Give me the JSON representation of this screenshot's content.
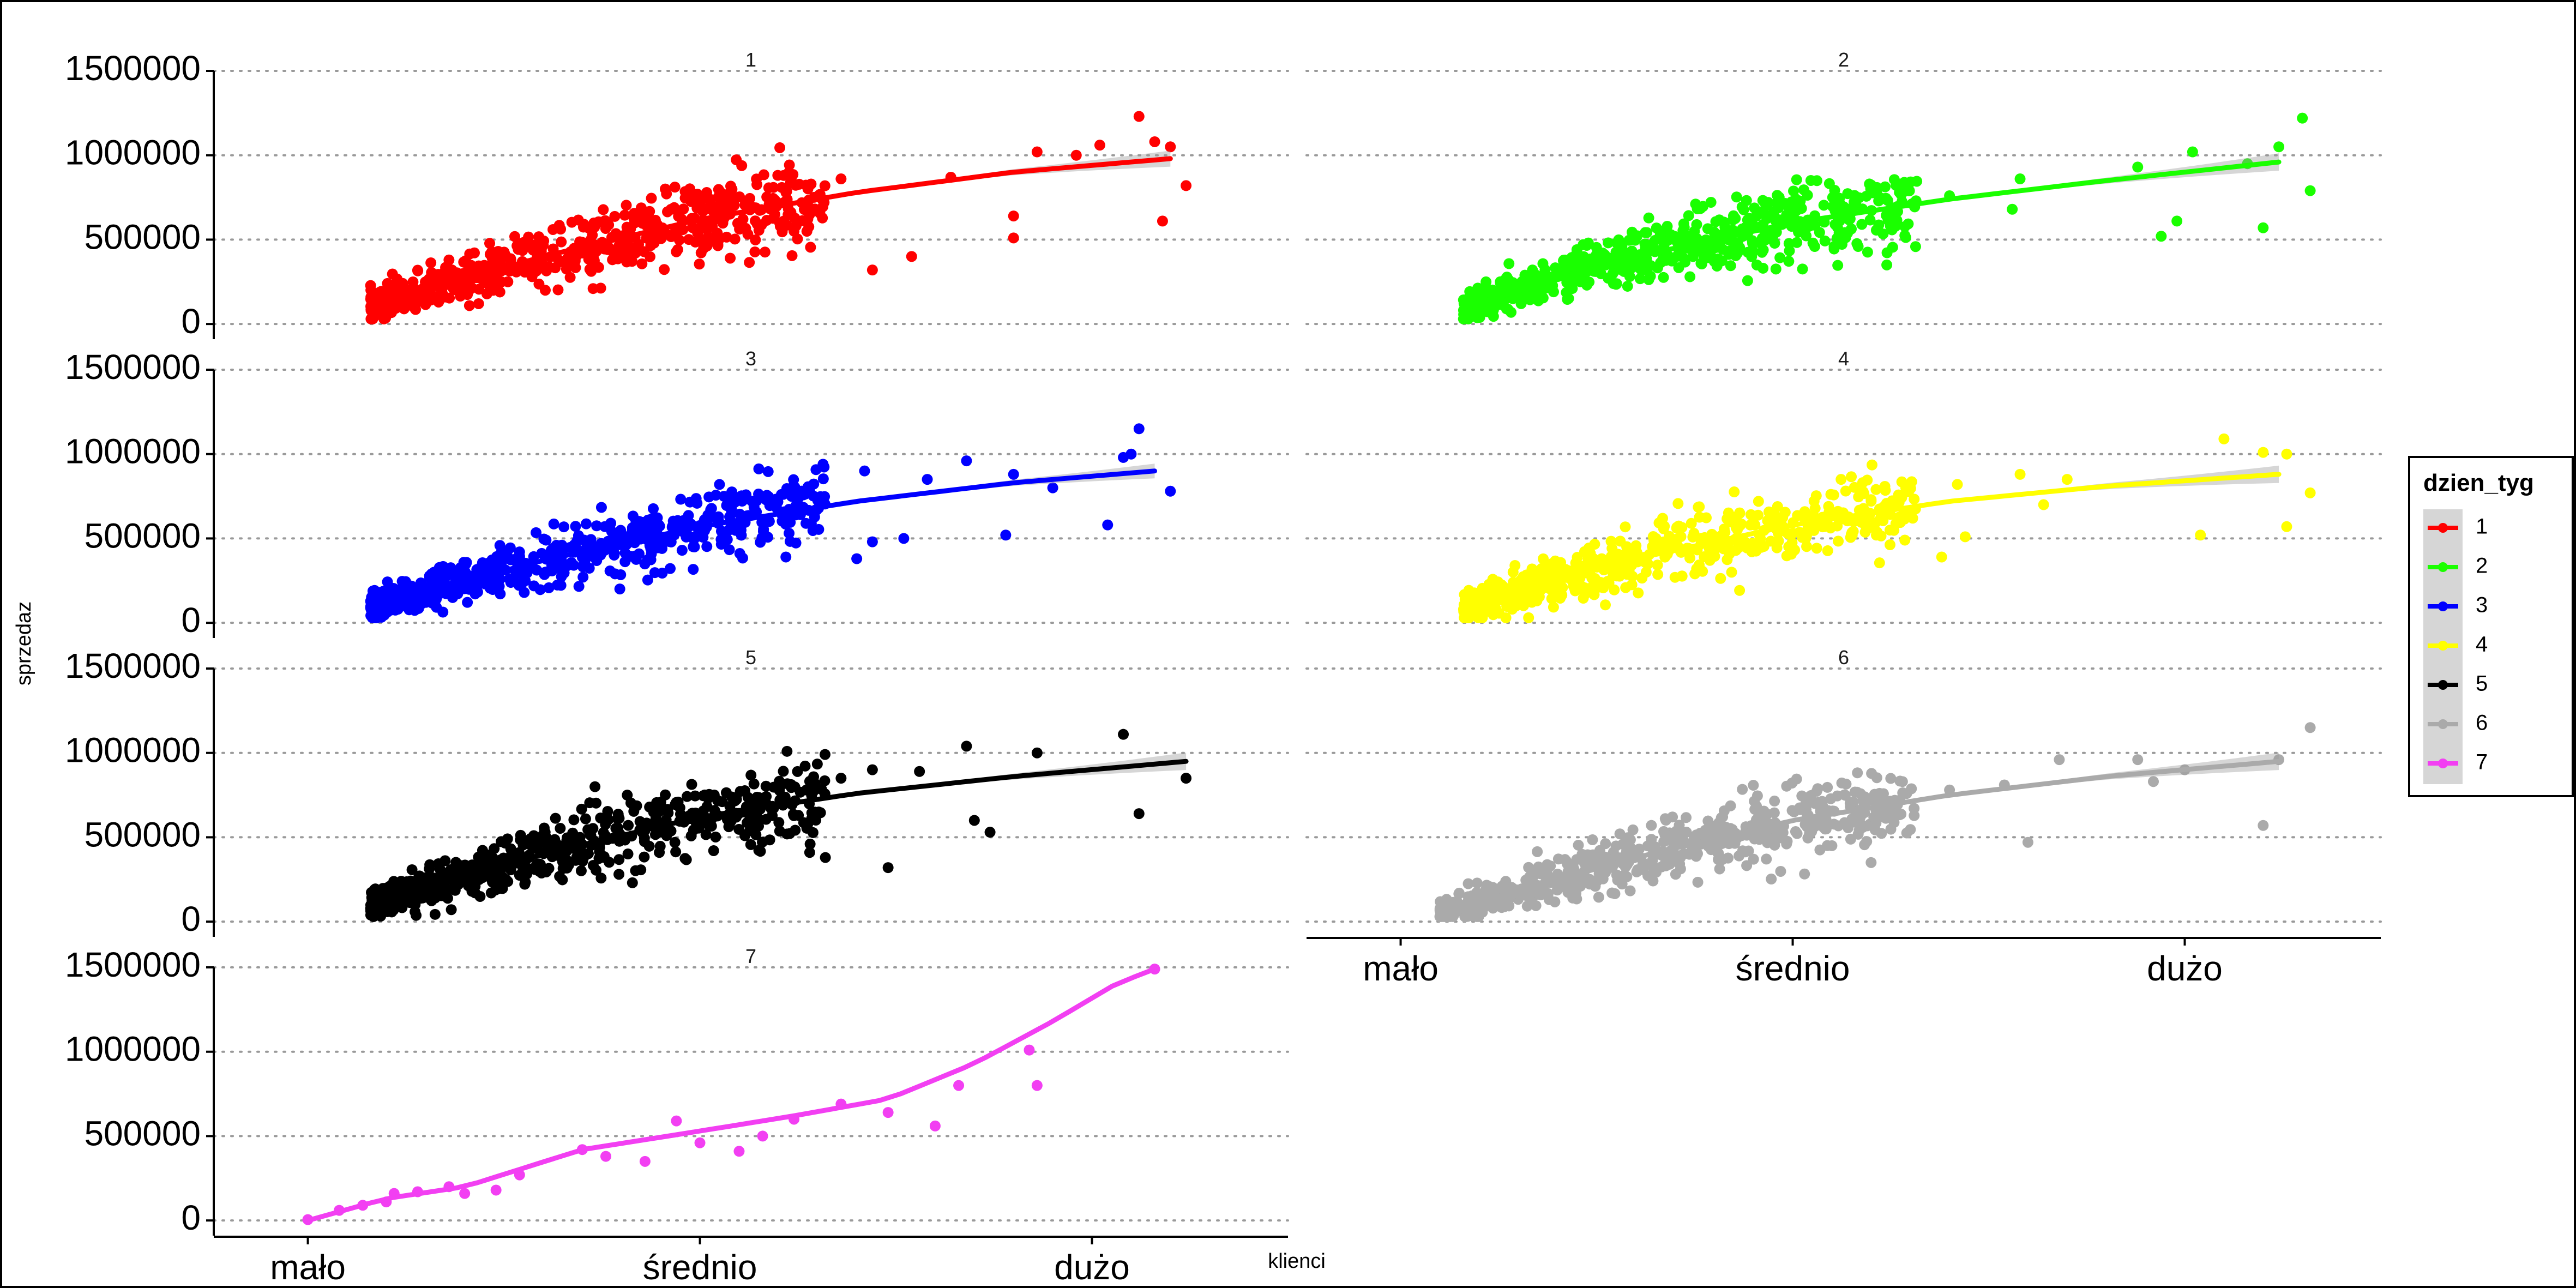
{
  "chart_data": {
    "type": "scatter",
    "layout": "facet_wrap",
    "xlabel": "klienci",
    "ylabel": "sprzedaz",
    "x_ticks": [
      "mało",
      "średnio",
      "dużo"
    ],
    "y_ticks": [
      "0",
      "500000",
      "1000000",
      "1500000"
    ],
    "ylim": [
      0,
      1500000
    ],
    "grid": "dotted horizontal",
    "legend": {
      "title": "dzien_tyg",
      "placement": "right"
    },
    "colors": {
      "1": "#ff0000",
      "2": "#1aff00",
      "3": "#0000ff",
      "4": "#ffff00",
      "5": "#000000",
      "6": "#aaaaaa",
      "7": "#f23ff2"
    },
    "series": [
      {
        "name": "1",
        "trend": [
          [
            0.08,
            100000
          ],
          [
            0.3,
            400000
          ],
          [
            0.5,
            620000
          ],
          [
            0.7,
            780000
          ],
          [
            0.9,
            900000
          ],
          [
            1.1,
            980000
          ]
        ],
        "sparse_points": [
          [
            0.68,
            860000
          ],
          [
            0.82,
            870000
          ],
          [
            0.93,
            1020000
          ],
          [
            1.01,
            1060000
          ],
          [
            1.08,
            1080000
          ],
          [
            0.98,
            1000000
          ],
          [
            1.06,
            1230000
          ],
          [
            1.1,
            1050000
          ],
          [
            1.12,
            820000
          ],
          [
            1.09,
            610000
          ],
          [
            0.72,
            320000
          ],
          [
            0.62,
            550000
          ],
          [
            0.64,
            650000
          ],
          [
            0.77,
            400000
          ],
          [
            0.9,
            510000
          ],
          [
            0.9,
            640000
          ]
        ]
      },
      {
        "name": "2",
        "trend": [
          [
            0.08,
            100000
          ],
          [
            0.3,
            400000
          ],
          [
            0.5,
            600000
          ],
          [
            0.7,
            740000
          ],
          [
            0.9,
            850000
          ],
          [
            1.12,
            960000
          ]
        ],
        "sparse_points": [
          [
            0.7,
            760000
          ],
          [
            0.79,
            860000
          ],
          [
            0.94,
            930000
          ],
          [
            1.01,
            1020000
          ],
          [
            1.08,
            950000
          ],
          [
            1.12,
            1050000
          ],
          [
            1.15,
            1220000
          ],
          [
            1.16,
            790000
          ],
          [
            1.1,
            570000
          ],
          [
            0.99,
            610000
          ],
          [
            0.97,
            520000
          ],
          [
            0.62,
            350000
          ],
          [
            0.78,
            680000
          ]
        ]
      },
      {
        "name": "3",
        "trend": [
          [
            0.08,
            100000
          ],
          [
            0.3,
            370000
          ],
          [
            0.5,
            570000
          ],
          [
            0.7,
            720000
          ],
          [
            0.9,
            830000
          ],
          [
            1.08,
            900000
          ]
        ],
        "sparse_points": [
          [
            0.64,
            780000
          ],
          [
            0.71,
            900000
          ],
          [
            0.79,
            850000
          ],
          [
            0.84,
            960000
          ],
          [
            0.9,
            880000
          ],
          [
            1.05,
            1000000
          ],
          [
            1.06,
            1150000
          ],
          [
            1.04,
            980000
          ],
          [
            1.02,
            580000
          ],
          [
            1.1,
            780000
          ],
          [
            0.89,
            520000
          ],
          [
            0.7,
            380000
          ],
          [
            0.72,
            480000
          ],
          [
            0.76,
            500000
          ],
          [
            0.95,
            800000
          ]
        ]
      },
      {
        "name": "4",
        "trend": [
          [
            0.08,
            100000
          ],
          [
            0.3,
            380000
          ],
          [
            0.5,
            580000
          ],
          [
            0.7,
            720000
          ],
          [
            0.9,
            810000
          ],
          [
            1.12,
            880000
          ]
        ],
        "sparse_points": [
          [
            0.6,
            730000
          ],
          [
            0.71,
            820000
          ],
          [
            0.79,
            880000
          ],
          [
            0.85,
            850000
          ],
          [
            1.05,
            1090000
          ],
          [
            1.1,
            1010000
          ],
          [
            1.13,
            1000000
          ],
          [
            1.16,
            770000
          ],
          [
            1.13,
            570000
          ],
          [
            1.02,
            520000
          ],
          [
            0.69,
            390000
          ],
          [
            0.72,
            510000
          ],
          [
            0.82,
            700000
          ]
        ]
      },
      {
        "name": "5",
        "trend": [
          [
            0.08,
            100000
          ],
          [
            0.3,
            400000
          ],
          [
            0.5,
            620000
          ],
          [
            0.7,
            760000
          ],
          [
            0.9,
            860000
          ],
          [
            1.12,
            950000
          ]
        ],
        "sparse_points": [
          [
            0.68,
            850000
          ],
          [
            0.72,
            900000
          ],
          [
            0.78,
            890000
          ],
          [
            0.84,
            1040000
          ],
          [
            0.93,
            1000000
          ],
          [
            1.04,
            1110000
          ],
          [
            1.12,
            850000
          ],
          [
            1.06,
            640000
          ],
          [
            0.87,
            530000
          ],
          [
            0.74,
            320000
          ],
          [
            0.64,
            410000
          ],
          [
            0.66,
            380000
          ],
          [
            0.85,
            600000
          ]
        ]
      },
      {
        "name": "6",
        "trend": [
          [
            0.05,
            50000
          ],
          [
            0.3,
            380000
          ],
          [
            0.5,
            600000
          ],
          [
            0.7,
            750000
          ],
          [
            0.9,
            860000
          ],
          [
            1.12,
            950000
          ]
        ],
        "sparse_points": [
          [
            0.64,
            830000
          ],
          [
            0.7,
            780000
          ],
          [
            0.77,
            810000
          ],
          [
            0.84,
            960000
          ],
          [
            0.94,
            960000
          ],
          [
            1.0,
            900000
          ],
          [
            1.12,
            960000
          ],
          [
            1.16,
            1150000
          ],
          [
            1.1,
            570000
          ],
          [
            0.8,
            470000
          ],
          [
            0.55,
            450000
          ],
          [
            0.6,
            350000
          ],
          [
            0.96,
            830000
          ]
        ]
      },
      {
        "name": "7",
        "trend": [
          [
            0.0,
            0
          ],
          [
            0.1,
            130000
          ],
          [
            0.2,
            200000
          ],
          [
            0.35,
            420000
          ],
          [
            0.5,
            530000
          ],
          [
            0.62,
            620000
          ],
          [
            0.74,
            720000
          ],
          [
            0.85,
            930000
          ],
          [
            0.95,
            1180000
          ],
          [
            1.03,
            1400000
          ],
          [
            1.08,
            1490000
          ]
        ],
        "sparse_points": [
          [
            0.0,
            5000
          ],
          [
            0.04,
            60000
          ],
          [
            0.07,
            90000
          ],
          [
            0.1,
            110000
          ],
          [
            0.11,
            160000
          ],
          [
            0.14,
            170000
          ],
          [
            0.18,
            200000
          ],
          [
            0.2,
            160000
          ],
          [
            0.24,
            180000
          ],
          [
            0.27,
            270000
          ],
          [
            0.35,
            420000
          ],
          [
            0.38,
            380000
          ],
          [
            0.43,
            350000
          ],
          [
            0.47,
            590000
          ],
          [
            0.5,
            460000
          ],
          [
            0.55,
            410000
          ],
          [
            0.58,
            500000
          ],
          [
            0.62,
            600000
          ],
          [
            0.68,
            690000
          ],
          [
            0.74,
            640000
          ],
          [
            0.8,
            560000
          ],
          [
            0.83,
            800000
          ],
          [
            0.92,
            1010000
          ],
          [
            0.93,
            800000
          ],
          [
            1.08,
            1490000
          ]
        ]
      }
    ]
  }
}
